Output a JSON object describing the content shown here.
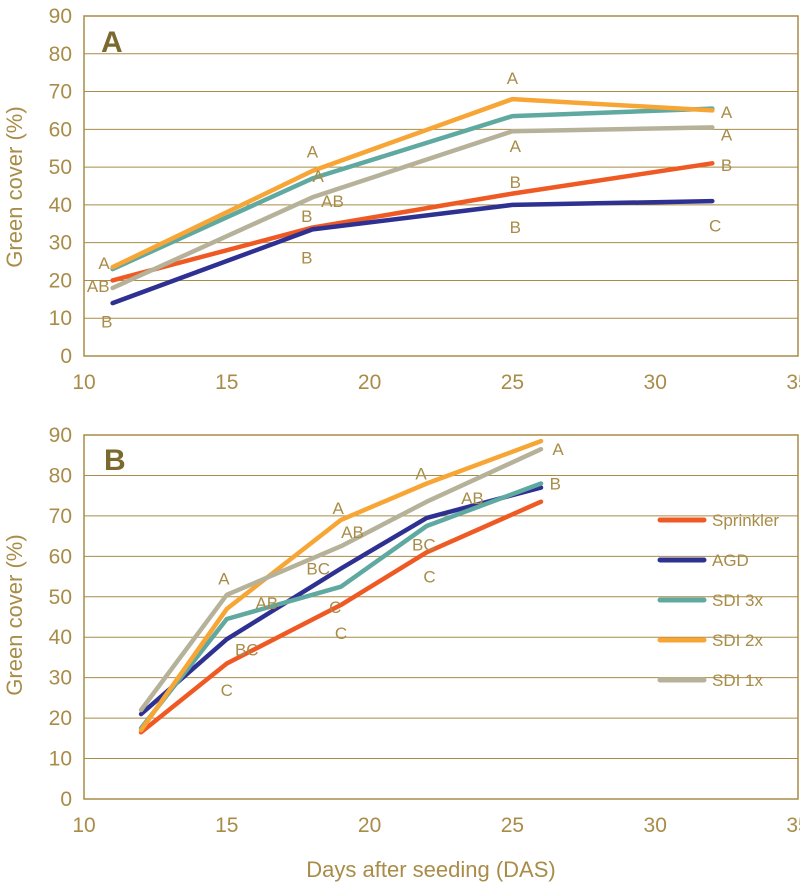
{
  "series_colors": {
    "Sprinkler": "#ef5a24",
    "AGD": "#2e3192",
    "SDI 3x": "#5fa9a1",
    "SDI 2x": "#f7a535",
    "SDI 1x": "#b6b29a"
  },
  "xlabel": "Days after seeding (DAS)",
  "legend": [
    "Sprinkler",
    "AGD",
    "SDI 3x",
    "SDI 2x",
    "SDI 1x"
  ],
  "chart_data": [
    {
      "type": "line",
      "panel": "A",
      "ylabel": "Green cover (%)",
      "xlim": [
        10,
        35
      ],
      "ylim": [
        0,
        90
      ],
      "xticks": [
        "10",
        "15",
        "20",
        "25",
        "30",
        "35"
      ],
      "yticks": [
        "0",
        "10",
        "20",
        "30",
        "40",
        "50",
        "60",
        "70",
        "80",
        "90"
      ],
      "series": [
        {
          "name": "Sprinkler",
          "x": [
            11,
            18,
            25,
            32
          ],
          "values": [
            20,
            34,
            43,
            51
          ]
        },
        {
          "name": "AGD",
          "x": [
            11,
            18,
            25,
            32
          ],
          "values": [
            14,
            33.5,
            40,
            41
          ]
        },
        {
          "name": "SDI 3x",
          "x": [
            11,
            18,
            25,
            32
          ],
          "values": [
            23,
            47,
            63.5,
            65.5
          ]
        },
        {
          "name": "SDI 2x",
          "x": [
            11,
            18,
            25,
            32
          ],
          "values": [
            23.5,
            49,
            68,
            65
          ]
        },
        {
          "name": "SDI 1x",
          "x": [
            11,
            18,
            25,
            32
          ],
          "values": [
            18,
            42,
            59.5,
            60.5
          ]
        }
      ],
      "letters": [
        {
          "text": "A",
          "x": 10.7,
          "y": 23
        },
        {
          "text": "AB",
          "x": 10.5,
          "y": 17
        },
        {
          "text": "B",
          "x": 10.8,
          "y": 7.5
        },
        {
          "text": "A",
          "x": 18,
          "y": 52.5
        },
        {
          "text": "A",
          "x": 18.2,
          "y": 46
        },
        {
          "text": "AB",
          "x": 18.7,
          "y": 39.5
        },
        {
          "text": "B",
          "x": 17.8,
          "y": 35.5
        },
        {
          "text": "B",
          "x": 17.8,
          "y": 24.5
        },
        {
          "text": "A",
          "x": 25,
          "y": 72
        },
        {
          "text": "A",
          "x": 25.1,
          "y": 54
        },
        {
          "text": "B",
          "x": 25.1,
          "y": 44.5
        },
        {
          "text": "B",
          "x": 25.1,
          "y": 32.5
        },
        {
          "text": "A",
          "x": 32.5,
          "y": 63
        },
        {
          "text": "A",
          "x": 32.5,
          "y": 57
        },
        {
          "text": "B",
          "x": 32.5,
          "y": 49
        },
        {
          "text": "C",
          "x": 32.1,
          "y": 33
        }
      ]
    },
    {
      "type": "line",
      "panel": "B",
      "ylabel": "Green cover (%)",
      "xlim": [
        10,
        35
      ],
      "ylim": [
        0,
        90
      ],
      "xticks": [
        "10",
        "15",
        "20",
        "25",
        "30",
        "35"
      ],
      "yticks": [
        "0",
        "10",
        "20",
        "30",
        "40",
        "50",
        "60",
        "70",
        "80",
        "90"
      ],
      "series": [
        {
          "name": "Sprinkler",
          "x": [
            12,
            15,
            19,
            22,
            26
          ],
          "values": [
            16.5,
            33.5,
            48,
            61,
            73.5
          ]
        },
        {
          "name": "AGD",
          "x": [
            12,
            15,
            19,
            22,
            26
          ],
          "values": [
            21,
            39.5,
            57,
            69.5,
            77
          ]
        },
        {
          "name": "SDI 3x",
          "x": [
            12,
            15,
            19,
            22,
            26
          ],
          "values": [
            17.5,
            44.5,
            52.5,
            67.5,
            78
          ]
        },
        {
          "name": "SDI 2x",
          "x": [
            12,
            15,
            19,
            22,
            26
          ],
          "values": [
            17,
            47,
            69,
            78,
            88.5
          ]
        },
        {
          "name": "SDI 1x",
          "x": [
            12,
            15,
            19,
            22,
            26
          ],
          "values": [
            22,
            50.5,
            62.5,
            73.5,
            86.5
          ]
        }
      ],
      "letters": [
        {
          "text": "A",
          "x": 14.9,
          "y": 53
        },
        {
          "text": "AB",
          "x": 16.4,
          "y": 47
        },
        {
          "text": "BC",
          "x": 15.7,
          "y": 35.5
        },
        {
          "text": "C",
          "x": 15,
          "y": 25.5
        },
        {
          "text": "A",
          "x": 18.9,
          "y": 70.5
        },
        {
          "text": "AB",
          "x": 19.4,
          "y": 64.5
        },
        {
          "text": "BC",
          "x": 18.2,
          "y": 55.5
        },
        {
          "text": "C",
          "x": 18.8,
          "y": 46
        },
        {
          "text": "C",
          "x": 19,
          "y": 39.5
        },
        {
          "text": "A",
          "x": 21.8,
          "y": 79
        },
        {
          "text": "AB",
          "x": 23.6,
          "y": 73
        },
        {
          "text": "BC",
          "x": 21.9,
          "y": 61.5
        },
        {
          "text": "C",
          "x": 22.1,
          "y": 53.5
        },
        {
          "text": "A",
          "x": 26.6,
          "y": 85
        },
        {
          "text": "B",
          "x": 26.5,
          "y": 76.5
        }
      ]
    }
  ]
}
